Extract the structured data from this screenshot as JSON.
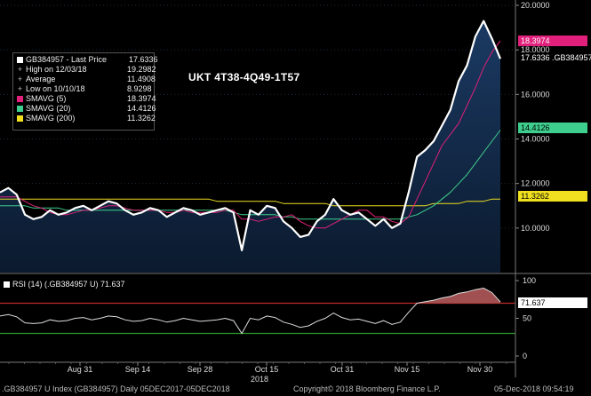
{
  "title": "UKT 4T38-4Q49-1T57",
  "legend": {
    "security": "GB384957 - Last Price",
    "last": "17.6336",
    "high_label": "High on 12/03/18",
    "high": "19.2982",
    "avg_label": "Average",
    "avg": "11.4908",
    "low_label": "Low on 10/10/18",
    "low": "8.9298",
    "sma5_label": "SMAVG (5)",
    "sma5": "18.3974",
    "sma20_label": "SMAVG (20)",
    "sma20": "14.4126",
    "sma200_label": "SMAVG (200)",
    "sma200": "11.3262"
  },
  "tags": {
    "sma5": "18.3974",
    "last": "17.6336 .GB384957",
    "sma20": "14.4126",
    "sma200": "11.3262",
    "rsi": "71.637"
  },
  "rsi_legend": "RSI (14) (.GB384957 U) 71.637",
  "footer": {
    "left": ".GB384957 U Index (GB384957) Daily 05DEC2017-05DEC2018",
    "mid": "Copyright© 2018 Bloomberg Finance L.P.",
    "right": "05-Dec-2018 09:54:19"
  },
  "colors": {
    "price": "#ffffff",
    "sma5": "#e0207a",
    "sma20": "#3ecf8e",
    "sma200": "#f0e020",
    "rsi_high": "#c0282a",
    "rsi_low": "#2a9a2a",
    "area_top": "#1b3a63",
    "area_bottom": "#0b1a2e"
  },
  "chart_data": {
    "type": "line",
    "x_tick_labels": [
      "Aug 31",
      "Sep 14",
      "Sep 28",
      "Oct 15",
      "Oct 31",
      "Nov 15",
      "Nov 30"
    ],
    "x_year_label": "2018",
    "y_ticks": [
      "20.0000",
      "18.0000",
      "16.0000",
      "14.0000",
      "12.0000",
      "10.0000"
    ],
    "ylim": [
      8.0,
      20.0
    ],
    "rsi_ticks": [
      "100",
      "50",
      "0"
    ],
    "rsi_ylim": [
      0,
      100
    ],
    "rsi_levels": [
      70,
      30
    ],
    "series": [
      {
        "name": "Last Price",
        "values": [
          11.6,
          11.8,
          11.5,
          10.6,
          10.4,
          10.5,
          10.8,
          10.6,
          10.7,
          10.9,
          11.0,
          10.8,
          11.0,
          11.2,
          11.1,
          10.8,
          10.6,
          10.7,
          10.9,
          10.8,
          10.5,
          10.7,
          10.9,
          10.8,
          10.6,
          10.7,
          10.8,
          10.9,
          10.7,
          9.0,
          10.8,
          10.6,
          11.0,
          10.9,
          10.3,
          10.0,
          9.6,
          9.7,
          10.3,
          10.6,
          11.3,
          10.8,
          10.6,
          10.7,
          10.4,
          10.1,
          10.4,
          10.0,
          10.2,
          11.6,
          13.2,
          13.5,
          13.9,
          14.6,
          15.3,
          16.6,
          17.3,
          18.6,
          19.3,
          18.5,
          17.6
        ]
      },
      {
        "name": "SMAVG (5)",
        "values": [
          11.4,
          11.4,
          11.4,
          11.2,
          11.0,
          10.9,
          10.7,
          10.6,
          10.6,
          10.7,
          10.8,
          10.8,
          10.9,
          11.0,
          11.0,
          10.9,
          10.8,
          10.8,
          10.8,
          10.8,
          10.7,
          10.7,
          10.8,
          10.7,
          10.7,
          10.7,
          10.7,
          10.8,
          10.8,
          10.4,
          10.4,
          10.3,
          10.4,
          10.5,
          10.5,
          10.6,
          10.3,
          10.1,
          10.0,
          10.0,
          10.2,
          10.4,
          10.6,
          10.8,
          10.8,
          10.5,
          10.5,
          10.3,
          10.2,
          10.5,
          11.3,
          12.1,
          12.9,
          13.7,
          14.2,
          14.7,
          15.5,
          16.3,
          17.2,
          17.9,
          18.4
        ]
      },
      {
        "name": "SMAVG (20)",
        "values": [
          11.0,
          11.0,
          11.0,
          11.0,
          10.9,
          10.9,
          10.9,
          10.9,
          10.8,
          10.8,
          10.8,
          10.8,
          10.8,
          10.8,
          10.8,
          10.8,
          10.8,
          10.8,
          10.8,
          10.8,
          10.8,
          10.8,
          10.8,
          10.8,
          10.8,
          10.8,
          10.8,
          10.8,
          10.7,
          10.6,
          10.6,
          10.6,
          10.6,
          10.6,
          10.5,
          10.5,
          10.4,
          10.4,
          10.4,
          10.4,
          10.4,
          10.4,
          10.4,
          10.4,
          10.4,
          10.4,
          10.4,
          10.4,
          10.4,
          10.5,
          10.6,
          10.8,
          11.0,
          11.3,
          11.6,
          12.0,
          12.4,
          12.9,
          13.4,
          13.9,
          14.4
        ]
      },
      {
        "name": "SMAVG (200)",
        "values": [
          11.3,
          11.3,
          11.3,
          11.3,
          11.3,
          11.3,
          11.3,
          11.3,
          11.3,
          11.3,
          11.3,
          11.3,
          11.3,
          11.3,
          11.3,
          11.3,
          11.3,
          11.3,
          11.3,
          11.3,
          11.3,
          11.3,
          11.3,
          11.3,
          11.3,
          11.3,
          11.2,
          11.2,
          11.2,
          11.2,
          11.2,
          11.2,
          11.2,
          11.2,
          11.1,
          11.1,
          11.1,
          11.1,
          11.1,
          11.1,
          11.0,
          11.0,
          11.0,
          11.0,
          11.0,
          11.0,
          11.0,
          11.0,
          11.0,
          11.0,
          11.0,
          11.0,
          11.1,
          11.1,
          11.1,
          11.1,
          11.2,
          11.2,
          11.2,
          11.3,
          11.3
        ]
      },
      {
        "name": "RSI (14)",
        "values": [
          53,
          55,
          52,
          44,
          43,
          44,
          48,
          46,
          47,
          50,
          51,
          48,
          50,
          53,
          52,
          48,
          46,
          47,
          50,
          48,
          45,
          47,
          50,
          48,
          46,
          47,
          48,
          50,
          47,
          30,
          50,
          48,
          53,
          51,
          45,
          42,
          38,
          40,
          46,
          50,
          57,
          51,
          48,
          49,
          46,
          43,
          47,
          42,
          45,
          58,
          70,
          72,
          74,
          77,
          79,
          83,
          85,
          88,
          90,
          84,
          71.6
        ]
      }
    ]
  }
}
